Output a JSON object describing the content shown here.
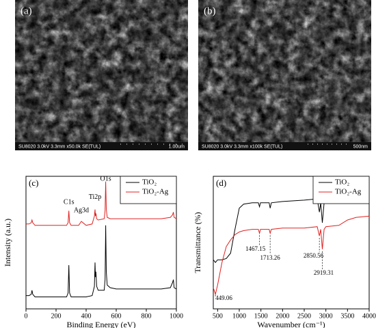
{
  "images": [
    {
      "label": "(a)",
      "caption": "SU8020 3.0kV 3.3mm x50.0k SE(TUL)",
      "scale": "1.00um"
    },
    {
      "label": "(b)",
      "caption": "SU8020 3.0kV 3.3mm x100k SE(TUL)",
      "scale": "500nm"
    }
  ],
  "chart_data": [
    {
      "type": "line",
      "label": "(c)",
      "xlabel": "Binding Energy (eV)",
      "ylabel": "Intensity (a.u.)",
      "xlim": [
        0,
        1000
      ],
      "xticks": [
        0,
        200,
        400,
        600,
        800,
        1000
      ],
      "ylim": [
        0,
        100
      ],
      "legend": "upper right",
      "x": [
        0,
        20,
        35,
        40,
        45,
        60,
        100,
        200,
        270,
        280,
        285,
        290,
        300,
        350,
        368,
        400,
        440,
        455,
        459,
        462,
        465,
        470,
        480,
        520,
        526,
        530,
        534,
        540,
        560,
        600,
        700,
        800,
        900,
        960,
        975,
        980,
        985,
        1000
      ],
      "series": [
        {
          "name": "TiO₂",
          "color": "#000000",
          "values": [
            10,
            10,
            11,
            14,
            11,
            9,
            9,
            9,
            9,
            12,
            33,
            12,
            9,
            9,
            9,
            9,
            10,
            17,
            35,
            24,
            28,
            17,
            14,
            14,
            22,
            63,
            28,
            18,
            16,
            15,
            15,
            15,
            15,
            16,
            20,
            22,
            16,
            15
          ]
        },
        {
          "name": "TiO₂-Ag",
          "color": "#e02020",
          "values": [
            64,
            64,
            65,
            67,
            65,
            63,
            63,
            63,
            63,
            65,
            74,
            65,
            63,
            63,
            66,
            63,
            64,
            70,
            75,
            70,
            72,
            68,
            67,
            68,
            74,
            96,
            75,
            69,
            68,
            68,
            68,
            68,
            68,
            69,
            71,
            73,
            69,
            68
          ]
        }
      ],
      "annotations": [
        "C1s",
        "Ag3d",
        "Ti2p",
        "O1s"
      ]
    },
    {
      "type": "line",
      "label": "(d)",
      "xlabel": "Wavenumber (cm⁻¹)",
      "ylabel": "Transmittance (%)",
      "xlim": [
        400,
        4000
      ],
      "xticks": [
        500,
        1000,
        1500,
        2000,
        2500,
        3000,
        3500,
        4000
      ],
      "ylim": [
        0,
        100
      ],
      "legend": "upper right",
      "x": [
        400,
        449,
        500,
        600,
        700,
        800,
        900,
        1000,
        1100,
        1300,
        1440,
        1467,
        1490,
        1600,
        1690,
        1713,
        1740,
        2000,
        2500,
        2800,
        2850,
        2880,
        2919,
        2960,
        3000,
        3300,
        3500,
        3700,
        4000
      ],
      "series": [
        {
          "name": "TiO₂",
          "color": "#000000",
          "values": [
            37,
            35,
            37,
            37,
            38,
            42,
            60,
            76,
            79,
            80,
            80,
            77,
            80,
            80,
            80,
            76,
            80,
            81,
            82,
            83,
            73,
            80,
            65,
            80,
            83,
            83,
            86,
            86,
            86
          ]
        },
        {
          "name": "TiO₂-Ag",
          "color": "#e02020",
          "values": [
            16,
            11,
            18,
            35,
            47,
            52,
            56,
            58,
            59,
            60,
            60,
            57,
            60,
            60,
            60,
            57,
            60,
            61,
            61,
            62,
            55,
            60,
            45,
            60,
            62,
            63,
            67,
            69,
            70
          ]
        }
      ],
      "annotations": [
        "1467.15",
        "1713.26",
        "2850.56",
        "2919.31",
        "449.06"
      ]
    }
  ]
}
